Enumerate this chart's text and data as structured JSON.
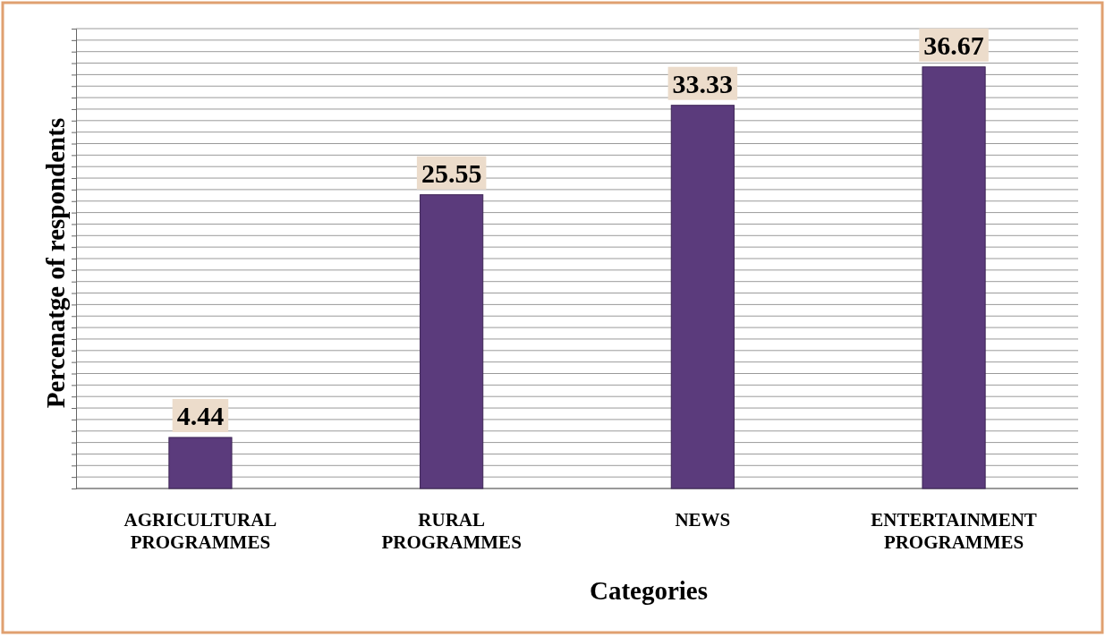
{
  "chart_data": {
    "type": "bar",
    "xlabel": "Categories",
    "ylabel": "Percenatge of respondents",
    "categories": [
      "AGRICULTURAL PROGRAMMES",
      "RURAL PROGRAMMES",
      "NEWS",
      "ENTERTAINMENT PROGRAMMES"
    ],
    "values": [
      4.44,
      25.55,
      33.33,
      36.67
    ],
    "color": "#5b3b7c",
    "data_labels": true,
    "grid": "y",
    "tick_labels": "x",
    "ylim": [
      0,
      40
    ],
    "yticks": [
      {
        "value": 0,
        "label": null
      },
      {
        "value": 1,
        "label": null
      },
      {
        "value": 2,
        "label": null
      },
      {
        "value": 3,
        "label": null
      },
      {
        "value": 4,
        "label": null
      },
      {
        "value": 5,
        "label": null
      },
      {
        "value": 6,
        "label": null
      },
      {
        "value": 7,
        "label": null
      },
      {
        "value": 8,
        "label": null
      },
      {
        "value": 9,
        "label": null
      },
      {
        "value": 10,
        "label": null
      },
      {
        "value": 11,
        "label": null
      },
      {
        "value": 12,
        "label": null
      },
      {
        "value": 13,
        "label": null
      },
      {
        "value": 14,
        "label": null
      },
      {
        "value": 15,
        "label": null
      },
      {
        "value": 16,
        "label": null
      },
      {
        "value": 17,
        "label": null
      },
      {
        "value": 18,
        "label": null
      },
      {
        "value": 19,
        "label": null
      },
      {
        "value": 20,
        "label": null
      },
      {
        "value": 21,
        "label": null
      },
      {
        "value": 22,
        "label": null
      },
      {
        "value": 23,
        "label": null
      },
      {
        "value": 24,
        "label": null
      },
      {
        "value": 25,
        "label": null
      },
      {
        "value": 26,
        "label": null
      },
      {
        "value": 27,
        "label": null
      },
      {
        "value": 28,
        "label": null
      },
      {
        "value": 29,
        "label": null
      },
      {
        "value": 30,
        "label": null
      },
      {
        "value": 31,
        "label": null
      },
      {
        "value": 32,
        "label": null
      },
      {
        "value": 33,
        "label": null
      },
      {
        "value": 34,
        "label": null
      },
      {
        "value": 35,
        "label": null
      },
      {
        "value": 36,
        "label": null
      },
      {
        "value": 37,
        "label": null
      },
      {
        "value": 38,
        "label": null
      },
      {
        "value": 39,
        "label": null
      },
      {
        "value": 40,
        "label": null
      }
    ]
  }
}
